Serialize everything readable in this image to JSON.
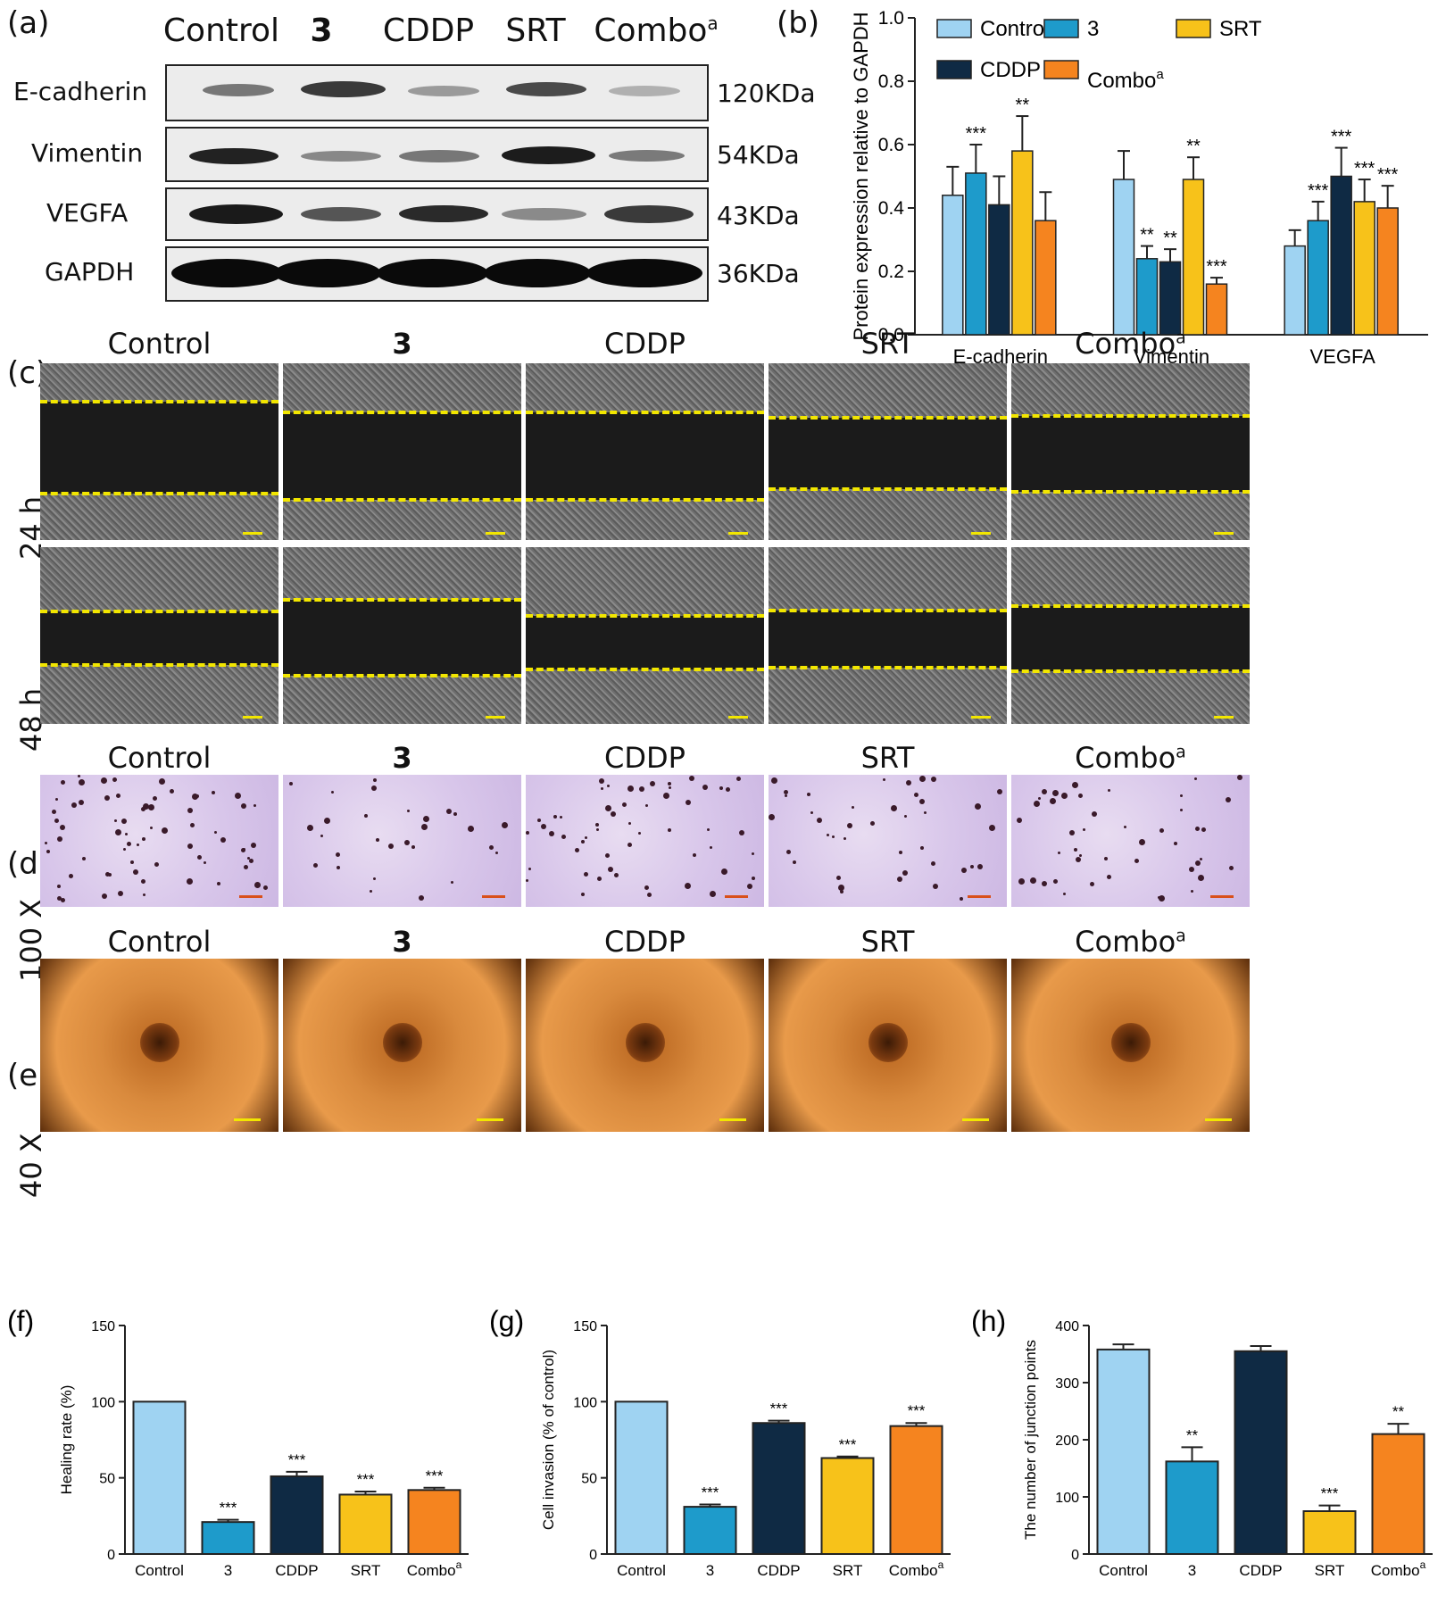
{
  "panels": {
    "a": "(a)",
    "b": "(b)",
    "c": "(c)",
    "d": "(d)",
    "e": "(e)",
    "f": "(f)",
    "g": "(g)",
    "h": "(h)"
  },
  "groups": {
    "control": "Control",
    "three": "3",
    "cddp": "CDDP",
    "srt": "SRT",
    "combo": "Combo",
    "combo_sup": "a"
  },
  "western": {
    "proteins": [
      "E-cadherin",
      "Vimentin",
      "VEGFA",
      "GAPDH"
    ],
    "kda": [
      "120KDa",
      "54KDa",
      "43KDa",
      "36KDa"
    ]
  },
  "scratch": {
    "row1": "24 h",
    "row2": "48 h"
  },
  "transwell": {
    "row": "100 X"
  },
  "tube": {
    "row": "40 X"
  },
  "colors": {
    "control": "#9fd3f2",
    "three": "#1e9bcb",
    "cddp": "#0f2a44",
    "srt": "#f7c21a",
    "combo": "#f5841f"
  },
  "chart_data": [
    {
      "id": "b",
      "type": "bar",
      "ylabel": "Protein expression relative to GAPDH",
      "ylim": [
        0,
        1.0
      ],
      "yticks": [
        "0.0",
        "0.2",
        "0.4",
        "0.6",
        "0.8",
        "1.0"
      ],
      "categories": [
        "E-cadherin",
        "Vimentin",
        "VEGFA"
      ],
      "series": [
        {
          "name": "Control",
          "values": [
            0.44,
            0.49,
            0.28
          ],
          "errors": [
            0.09,
            0.09,
            0.05
          ],
          "sig": [
            "",
            "",
            ""
          ]
        },
        {
          "name": "3",
          "values": [
            0.51,
            0.24,
            0.36
          ],
          "errors": [
            0.09,
            0.04,
            0.06
          ],
          "sig": [
            "***",
            "**",
            "***"
          ]
        },
        {
          "name": "CDDP",
          "values": [
            0.41,
            0.23,
            0.5
          ],
          "errors": [
            0.09,
            0.04,
            0.09
          ],
          "sig": [
            "",
            "**",
            "***"
          ]
        },
        {
          "name": "SRT",
          "values": [
            0.58,
            0.49,
            0.42
          ],
          "errors": [
            0.11,
            0.07,
            0.07
          ],
          "sig": [
            "**",
            "**",
            "***"
          ]
        },
        {
          "name": "Combo",
          "values": [
            0.36,
            0.16,
            0.4
          ],
          "errors": [
            0.09,
            0.02,
            0.07
          ],
          "sig": [
            "",
            "***",
            "***"
          ]
        }
      ],
      "legend": [
        "Control",
        "3",
        "SRT",
        "CDDP",
        "Combo"
      ]
    },
    {
      "id": "f",
      "type": "bar",
      "ylabel": "Healing rate (%)",
      "ylim": [
        0,
        150
      ],
      "yticks": [
        "0",
        "50",
        "100",
        "150"
      ],
      "categories": [
        "Control",
        "3",
        "CDDP",
        "SRT",
        "Combo"
      ],
      "values": [
        100,
        21,
        51,
        39,
        42
      ],
      "errors": [
        0,
        1.5,
        3,
        2,
        1.5
      ],
      "sig": [
        "",
        "***",
        "***",
        "***",
        "***"
      ]
    },
    {
      "id": "g",
      "type": "bar",
      "ylabel": "Cell invasion (% of control)",
      "ylim": [
        0,
        150
      ],
      "yticks": [
        "0",
        "50",
        "100",
        "150"
      ],
      "categories": [
        "Control",
        "3",
        "CDDP",
        "SRT",
        "Combo"
      ],
      "values": [
        100,
        31,
        86,
        63,
        84
      ],
      "errors": [
        0,
        1.5,
        1.5,
        1,
        2
      ],
      "sig": [
        "",
        "***",
        "***",
        "***",
        "***"
      ]
    },
    {
      "id": "h",
      "type": "bar",
      "ylabel": "The number of junction points",
      "ylim": [
        0,
        400
      ],
      "yticks": [
        "0",
        "100",
        "200",
        "300",
        "400"
      ],
      "categories": [
        "Control",
        "3",
        "CDDP",
        "SRT",
        "Combo"
      ],
      "values": [
        358,
        162,
        355,
        75,
        210
      ],
      "errors": [
        9,
        25,
        9,
        10,
        18
      ],
      "sig": [
        "",
        "**",
        "",
        "***",
        "**"
      ]
    }
  ]
}
